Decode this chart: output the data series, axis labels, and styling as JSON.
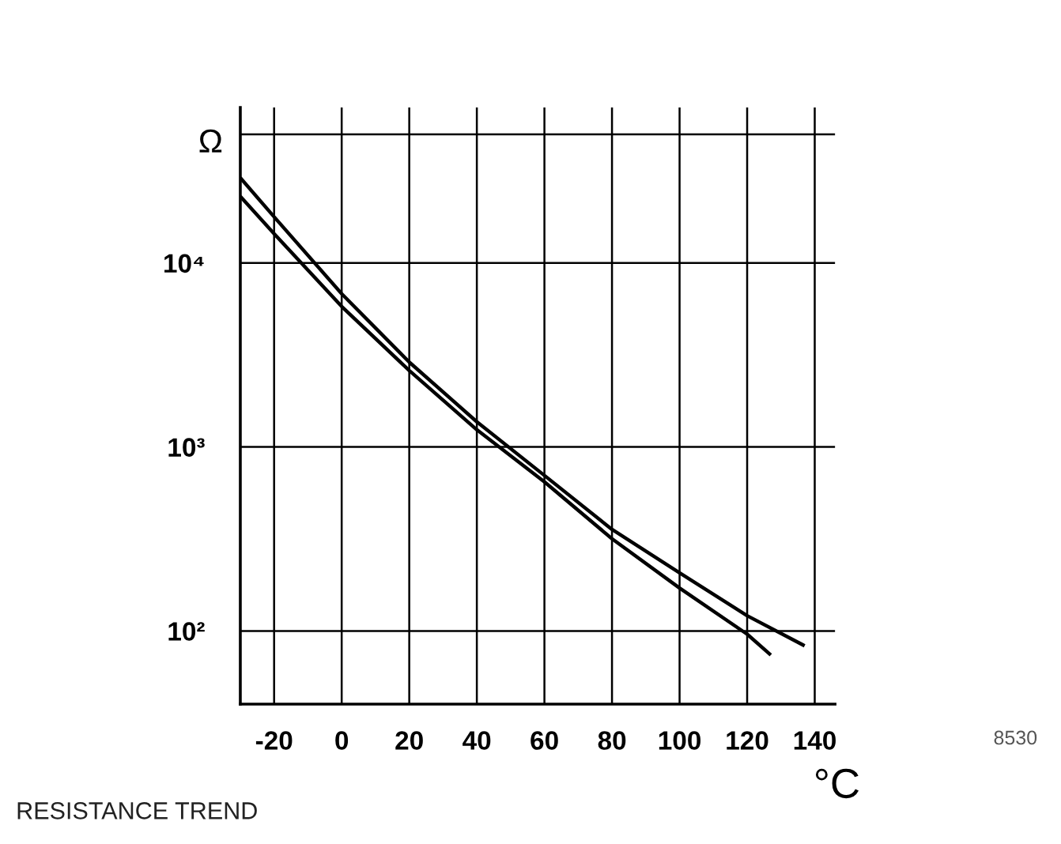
{
  "chart_data": {
    "type": "line",
    "title": "RESISTANCE TREND",
    "xlabel": "°C",
    "ylabel": "Ω",
    "annotations": [
      "8530"
    ],
    "log": "y",
    "xlim": [
      -30,
      146
    ],
    "xticks": [
      -20,
      0,
      20,
      40,
      60,
      80,
      100,
      120,
      140
    ],
    "ylim": [
      40,
      70000
    ],
    "yticks": [
      {
        "value": 100,
        "label": "10²"
      },
      {
        "value": 1000,
        "label": "10³"
      },
      {
        "value": 10000,
        "label": "10⁴"
      },
      {
        "value": 50000,
        "label": null
      }
    ],
    "grid": true,
    "series": [
      {
        "color": "#000000",
        "x": [
          -30,
          -20,
          0,
          20,
          40,
          60,
          80,
          100,
          120,
          137
        ],
        "values": [
          29000,
          17800,
          6800,
          2890,
          1370,
          700,
          356,
          207,
          121,
          83
        ]
      },
      {
        "color": "#000000",
        "x": [
          -30,
          -20,
          0,
          20,
          40,
          60,
          80,
          100,
          120,
          127
        ],
        "values": [
          23000,
          14400,
          5800,
          2600,
          1240,
          646,
          317,
          171,
          96,
          74
        ]
      }
    ]
  }
}
